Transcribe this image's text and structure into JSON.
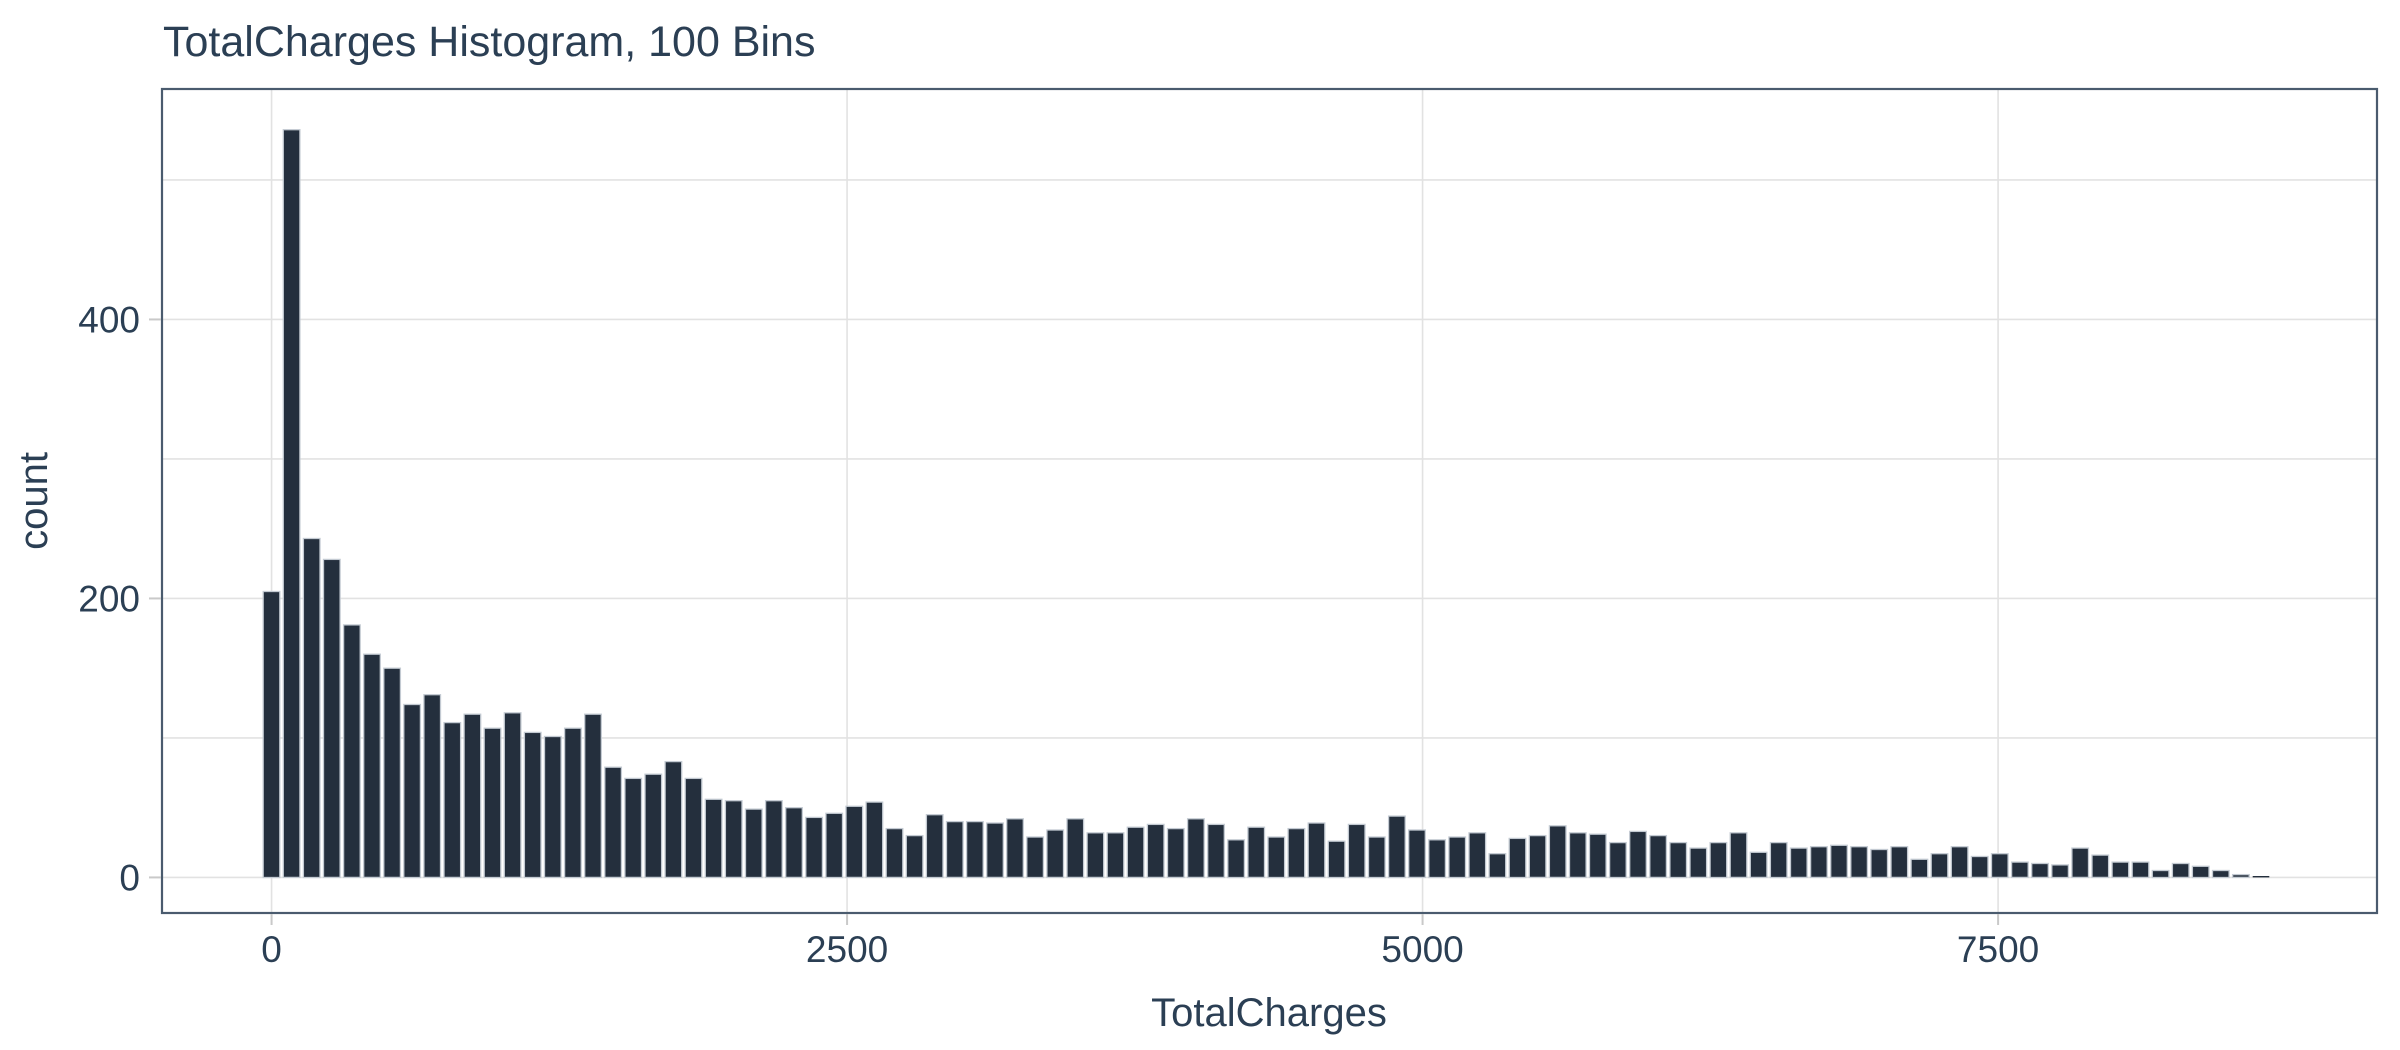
{
  "colors": {
    "background": "#ffffff",
    "bar_fill": "#242f3d",
    "bar_stroke": "#c3cad2",
    "grid": "#e2e2e2",
    "frame": "#4a5b6e",
    "tick": "#c9c9c9",
    "text": "#2b3f54"
  },
  "chart_data": {
    "type": "bar",
    "subtype": "histogram",
    "title": "TotalCharges Histogram, 100 Bins",
    "xlabel": "TotalCharges",
    "ylabel": "count",
    "legend": "none",
    "grid": "on",
    "bin_start": -36.5,
    "bin_width": 87.3,
    "num_bins": 100,
    "counts": [
      205,
      536,
      243,
      228,
      181,
      160,
      150,
      124,
      131,
      111,
      117,
      107,
      118,
      104,
      101,
      107,
      117,
      79,
      71,
      74,
      83,
      71,
      56,
      55,
      49,
      55,
      50,
      43,
      46,
      51,
      54,
      35,
      30,
      45,
      40,
      40,
      39,
      42,
      29,
      34,
      42,
      32,
      32,
      36,
      38,
      35,
      42,
      38,
      27,
      36,
      29,
      35,
      39,
      26,
      38,
      29,
      44,
      34,
      27,
      29,
      32,
      17,
      28,
      30,
      37,
      32,
      31,
      25,
      33,
      30,
      25,
      21,
      25,
      32,
      18,
      25,
      21,
      22,
      23,
      22,
      20,
      22,
      13,
      17,
      22,
      15,
      17,
      11,
      10,
      9,
      21,
      16,
      11,
      11,
      5,
      10,
      8,
      5,
      2,
      1
    ],
    "x_ticks": [
      0,
      2500,
      5000,
      7500
    ],
    "y_ticks": [
      0,
      200,
      400
    ],
    "y_gridlines": [
      0,
      100,
      200,
      300,
      400,
      500
    ],
    "x_range": [
      -476,
      9146
    ],
    "y_range": [
      -25.5,
      565.2
    ]
  }
}
